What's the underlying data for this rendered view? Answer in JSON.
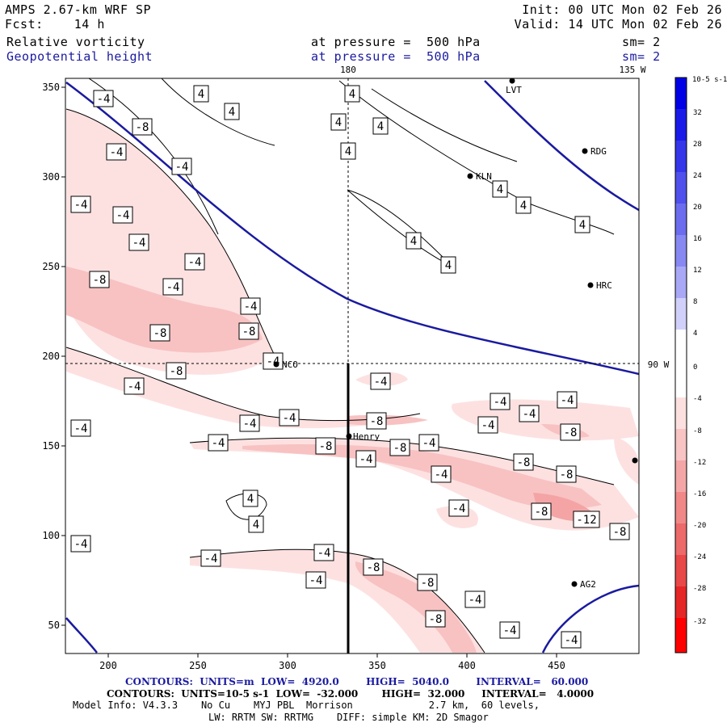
{
  "header": {
    "model": "AMPS 2.67-km WRF SP",
    "fcst": "Fcst:    14 h",
    "init": "Init: 00 UTC Mon 02 Feb 26",
    "valid": "Valid: 14 UTC Mon 02 Feb 26",
    "field1": "Relative vorticity",
    "field1_level": "at pressure =  500 hPa",
    "field1_sm": "sm= 2",
    "field2": "Geopotential height",
    "field2_level": "at pressure =  500 hPa",
    "field2_sm": "sm= 2"
  },
  "map": {
    "lon_labels": [
      "180",
      "135 W",
      "90 W"
    ],
    "x_ticks": [
      "200",
      "250",
      "300",
      "350",
      "400",
      "450"
    ],
    "y_ticks": [
      "350",
      "300",
      "250",
      "200",
      "150",
      "100",
      "50"
    ],
    "stations": [
      "LVT",
      "RDG",
      "KLN",
      "HRC",
      "NCO",
      "Henry",
      "AG2"
    ],
    "contour_labels": {
      "neg4": "-4",
      "neg8": "-8",
      "neg12": "-12",
      "pos4": "4"
    }
  },
  "colorbar": {
    "unit": "10-5 s-1",
    "labels": [
      "32",
      "28",
      "24",
      "20",
      "16",
      "12",
      "8",
      "4",
      "0",
      "-4",
      "-8",
      "-12",
      "-16",
      "-20",
      "-24",
      "-28",
      "-32"
    ],
    "colors": [
      "#0000e6",
      "#1a1ae8",
      "#3535ea",
      "#5050ec",
      "#6c6cee",
      "#8888f2",
      "#a8a8f6",
      "#d0d0fa",
      "#ffffff",
      "#fce0e0",
      "#f8c4c4",
      "#f4a6a6",
      "#f08888",
      "#ec6a6a",
      "#e84848",
      "#e42626",
      "#ff0000"
    ]
  },
  "footer": {
    "line1": "CONTOURS:  UNITS=m  LOW=  4920.0        HIGH=  5040.0        INTERVAL=   60.000",
    "line2": "CONTOURS:  UNITS=10-5 s-1  LOW=  -32.000       HIGH=  32.000     INTERVAL=   4.0000",
    "line3": "Model Info: V4.3.3    No Cu    MYJ PBL  Morrison             2.7 km,  60 levels,",
    "line4": "LW: RRTM SW: RRTMG    DIFF: simple KM: 2D Smagor"
  }
}
